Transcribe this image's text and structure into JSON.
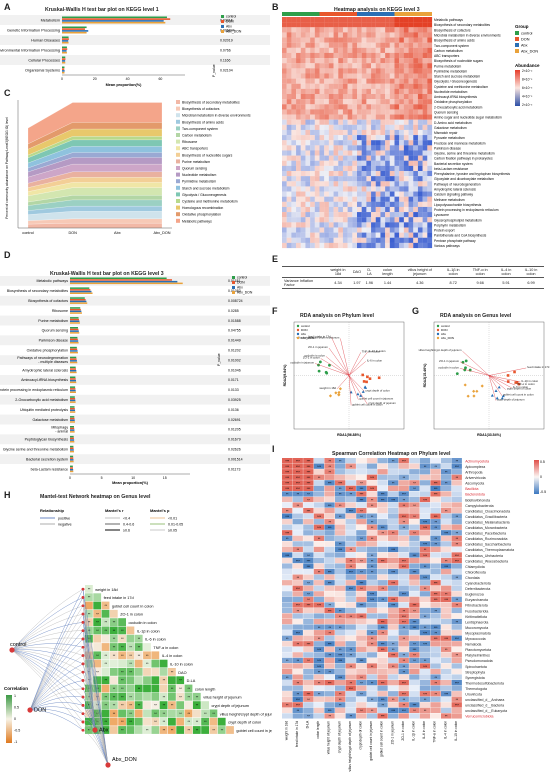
{
  "panelA": {
    "label": "A",
    "title": "Kruskal-Wallis H test bar plot on KEGG level 1",
    "categories": [
      "Metabolism",
      "Genetic Information Processing",
      "Human Diseases",
      "Environmental Information Processing",
      "Cellular Processes",
      "Organismal Systems"
    ],
    "pvalues": [
      "0.03016",
      "0.006844",
      "0.02019",
      "0.0766",
      "0.1166",
      "0.02104"
    ],
    "xlabel": "Mean proportion(%)",
    "ticks": [
      "0",
      "20",
      "40",
      "60"
    ],
    "pval_label": "P_value",
    "legend": [
      "control",
      "DON",
      "Abx",
      "Abx_DON"
    ]
  },
  "panelB": {
    "label": "B",
    "title": "Heatmap analysis on KEGG level 3",
    "rows": [
      "Metabolic pathways",
      "Biosynthesis of secondary metabolites",
      "Biosynthesis of cofactors",
      "Microbial metabolism in diverse environments",
      "Biosynthesis of amino acids",
      "Two-component system",
      "Carbon metabolism",
      "ABC transporters",
      "Biosynthesis of nucleotide sugars",
      "Purine metabolism",
      "Pyrimidine metabolism",
      "Starch and sucrose metabolism",
      "Glycolysis / Gluconeogenesis",
      "Cysteine and methionine metabolism",
      "Nucleotide metabolism",
      "Aminoacyl-tRNA biosynthesis",
      "Oxidative phosphorylation",
      "2-Oxocarboxylic acid metabolism",
      "Quorum sensing",
      "Amino sugar and nucleotide sugar metabolism",
      "D-Amino acid metabolism",
      "Galactose metabolism",
      "Mismatch repair",
      "Pyruvate metabolism",
      "Fructose and mannose metabolism",
      "Parkinson disease",
      "Glycine, serine and threonine metabolism",
      "Carbon fixation pathways in prokaryotes",
      "Bacterial secretion system",
      "beta-Lactam resistance",
      "Phenylalanine, tyrosine and tryptophan biosynthesis",
      "Glyoxylate and dicarboxylate metabolism",
      "Pathways of neurodegeneration",
      "Amyotrophic lateral sclerosis",
      "Calcium signaling pathway",
      "Methane metabolism",
      "Lipopolysaccharide biosynthesis",
      "Protein processing in endoplasmic reticulum",
      "Lysosome",
      "Glycerophospholipid metabolism",
      "Porphyrin metabolism",
      "Protein export",
      "Pantothenate and CoA biosynthesis",
      "Pentose phosphate pathway",
      "Various pathways"
    ],
    "group_title": "Group",
    "groups": [
      {
        "name": "control",
        "color": "#2e9e4a"
      },
      {
        "name": "DON",
        "color": "#e8572c"
      },
      {
        "name": "Abx",
        "color": "#2a6fb5"
      },
      {
        "name": "Abx_DON",
        "color": "#e9a23b"
      }
    ],
    "abundance_title": "Abundance",
    "abundance_ticks": [
      "2×10⁻²",
      "8×10⁻³",
      "6×10⁻³",
      "4×10⁻³",
      "2×10⁻³"
    ]
  },
  "panelC": {
    "label": "C",
    "ylabel": "Percent of community abundance on Pathway Level3(KEGG ID) level",
    "xcats": [
      "control",
      "DON",
      "Abx",
      "Abx_DON"
    ],
    "legend": [
      "Biosynthesis of secondary metabolites",
      "Biosynthesis of cofactors",
      "Microbial metabolism in diverse environments",
      "Biosynthesis of amino acids",
      "Two-component system",
      "Carbon metabolism",
      "Ribosome",
      "ABC transporters",
      "Biosynthesis of nucleotide sugars",
      "Purine metabolism",
      "Quorum sensing",
      "Nucleotide metabolism",
      "Pyrimidine metabolism",
      "Starch and sucrose metabolism",
      "Glycolysis / Gluconeogenesis",
      "Cysteine and methionine metabolism",
      "Homologous recombination",
      "Oxidative phosphorylation",
      "Metabolic pathways"
    ],
    "colors": [
      "#f2b8a6",
      "#f7c9b6",
      "#cfe3ec",
      "#9fc9df",
      "#9bd0c3",
      "#b3d6a5",
      "#d3e6b0",
      "#f0e6a6",
      "#f3cf96",
      "#e9b19f",
      "#cda6c8",
      "#b59ac4",
      "#9aa9d3",
      "#8fc2de",
      "#7ec7b3",
      "#b8d98c",
      "#e8c86b",
      "#e39a6b",
      "#f4a58a"
    ]
  },
  "panelD": {
    "label": "D",
    "title": "Kruskal-Wallis H test bar plot on KEGG level 3",
    "categories": [
      "Metabolic pathways",
      "Biosynthesis of secondary metabolites",
      "Biosynthesis of cofactors",
      "Ribosome",
      "Purine metabolism",
      "Quorum sensing",
      "Parkinson disease",
      "Oxidative phosphorylation",
      "Pathways of neurodegeneration - multiple diseases",
      "Amyotrophic lateral sclerosis",
      "Aminoacyl-tRNA biosynthesis",
      "Protein processing in endoplasmic reticulum",
      "2-Oxocarboxylic acid metabolism",
      "Ubiquitin mediated proteolysis",
      "Galactose metabolism",
      "Mitophagy - animal",
      "Peptidoglycan biosynthesis",
      "Glycine serine and threonine metabolism",
      "Bacterial secretion system",
      "beta-Lactam resistance"
    ],
    "pvalues": [
      "0.01181",
      "0.01083",
      "0.008724",
      "0.0285",
      "0.01588",
      "0.04755",
      "0.01449",
      "0.01202",
      "0.01002",
      "0.01046",
      "0.0171",
      "0.0133",
      "0.03925",
      "0.0136",
      "0.02691",
      "0.01205",
      "0.01679",
      "0.02626",
      "0.001514",
      "0.01173"
    ],
    "values": [
      17,
      3.4,
      2.6,
      1.8,
      1.5,
      1.4,
      1.3,
      1.2,
      1.1,
      1.0,
      0.95,
      0.9,
      0.85,
      0.8,
      0.75,
      0.7,
      0.65,
      0.6,
      0.55,
      0.5
    ],
    "xlabel": "Mean proportion(%)",
    "ticks": [
      "0",
      "5",
      "10",
      "15"
    ],
    "pval_label": "P_value",
    "legend": [
      "control",
      "DON",
      "Abx",
      "Abx_DON"
    ]
  },
  "panelE": {
    "label": "E",
    "headers": [
      "",
      "weight in 18d",
      "DAO",
      "D-LA",
      "colon length",
      "villus height of jejunum",
      "IL-1β in colon",
      "TNF-α in colon",
      "IL-4 in colon",
      "IL-10 in colon"
    ],
    "row_label": "Variance Inflation Factor",
    "values": [
      "4.34",
      "1.97",
      "1.96",
      "1.44",
      "4.36",
      "8.72",
      "9.66",
      "5.91",
      "6.99"
    ]
  },
  "panelF": {
    "label": "F",
    "title": "RDA analysis on Phylum level",
    "xlabel": "RDA1(56.88%)",
    "ylabel": "RDA2(9.84%)",
    "legend": [
      "control",
      "DON",
      "Abx",
      "Abx_DON"
    ],
    "vectors": [
      "feed intake in 17d",
      "villus height/crypt depth of jejunum",
      "ZO-1 in jejunum",
      "occludin in colon",
      "ZO-1 in colon",
      "occludin in jejunum",
      "IL-1β in colon",
      "TNF-α in colon",
      "IL-6 in colon",
      "weight in 18d",
      "crypt depth of colon",
      "goblet cell count in jejunum",
      "goblet cell count in colon",
      "crypt depth of jejunum"
    ]
  },
  "panelG": {
    "label": "G",
    "title": "RDA analysis on Genus level",
    "xlabel": "RDA1(33.54%)",
    "ylabel": "RDA2(15.46%)",
    "legend": [
      "control",
      "DON",
      "Abx",
      "Abx_DON"
    ],
    "vectors": [
      "villus height/crypt depth of jejunum",
      "ZO-1 in jejunum",
      "occludin in colon",
      "feed intake in 17d",
      "IL-1β in colon",
      "TNF-α in colon",
      "IL-6 in colon",
      "crypt depth of colon",
      "goblet cell count in colon",
      "crypt depth of jejunum"
    ]
  },
  "panelH": {
    "label": "H",
    "title": "Mantel-test Network heatmap on Genus level",
    "relationship_title": "Relationship",
    "relationship": [
      "positive",
      "negative"
    ],
    "mantel_r_title": "Mantel's r",
    "mantel_r": [
      "<0.4",
      "0.4-0.6",
      "≥0.6"
    ],
    "mantel_p_title": "Mantel's p",
    "mantel_p": [
      "<0.01",
      "0.01-0.05",
      "≥0.05"
    ],
    "nodes": [
      "control",
      "DON",
      "Abx",
      "Abx_DON"
    ],
    "variables": [
      "weight in 18d",
      "feed intake in 17d",
      "goblet cell count in colon",
      "ZO-1 in colon",
      "occludin in colon",
      "IL-1β in colon",
      "IL-6 in colon",
      "TNF-α in colon",
      "IL-4 in colon",
      "IL-10 in colon",
      "DAO",
      "D-LA",
      "colon length",
      "villus height of jejunum",
      "crypt depth of jejunum",
      "villus height/crypt depth of jejunum",
      "crypt depth of colon",
      "goblet cell count in jejunum"
    ],
    "corr_title": "Correlation",
    "corr_ticks": [
      "1",
      "0.5",
      "0",
      "-0.5",
      "-1"
    ]
  },
  "panelI": {
    "label": "I",
    "title": "Spearman Correlation Heatmap on Phylum level",
    "rows": [
      "Actinomycetota",
      "Apicomplexa",
      "Arthropoda",
      "Artverviricota",
      "Ascomycota",
      "Bacillota",
      "Bacteroidota",
      "Bdellovibrionota",
      "Campylobacterota",
      "Candidatus_Cloacimonadota",
      "Candidatus_Gracilibacteria",
      "Candidatus_Melainabacteria",
      "Candidatus_Moranbacteria",
      "Candidatus_Paceibacteria",
      "Candidatus_Rozimonadota",
      "Candidatus_Saccharibacteria",
      "Candidatus_Thermoplasmatota",
      "Candidatus_Uhrbacteria",
      "Candidatus_Woesebacteria",
      "Chlamydiota",
      "Chloroflexota",
      "Chordata",
      "Cyanobacteriota",
      "Deferribacterota",
      "Euglenozoa",
      "Euryarchaeota",
      "Fibrobacterota",
      "Fusobacteriota",
      "Kiritimatiellota",
      "Lentisphaerota",
      "Mucoromycota",
      "Mycoplasmatota",
      "Myxococcota",
      "Nematoda",
      "Planctomycetota",
      "Platyhelminthes",
      "Pseudomonadota",
      "Spirochaetota",
      "Streptophyta",
      "Synergistota",
      "Thermodesulfobacteriota",
      "Thermotogota",
      "Uroviricota",
      "unclassified_d__Archaea",
      "unclassified_d__Bacteria",
      "unclassified_d__Eukaryota",
      "Verrucomicrobiota"
    ],
    "highlight_rows": [
      "Actinomycetota",
      "Bacillota",
      "Bacteroidota",
      "Verrucomicrobiota"
    ],
    "cols": [
      "weight in 18d",
      "feed intake in 17d",
      "D-LA",
      "colon length",
      "villus height of jejunum",
      "crypt depth of jejunum",
      "villus height/crypt depth of jejunum",
      "crypt depth of colon",
      "goblet cell count in jejunum",
      "goblet cell count in colon",
      "ZO-1 in jejunum",
      "ZO-1 in colon",
      "IL-1β in colon",
      "IL-6 in colon",
      "TNF-α in colon",
      "IL-4 in colon",
      "IL-10 in colon"
    ],
    "scale_ticks": [
      "0.5",
      "0",
      "-0.5"
    ]
  },
  "colors": {
    "control": "#2e9e4a",
    "DON": "#e8572c",
    "Abx": "#2a6fb5",
    "Abx_DON": "#e9a23b"
  }
}
